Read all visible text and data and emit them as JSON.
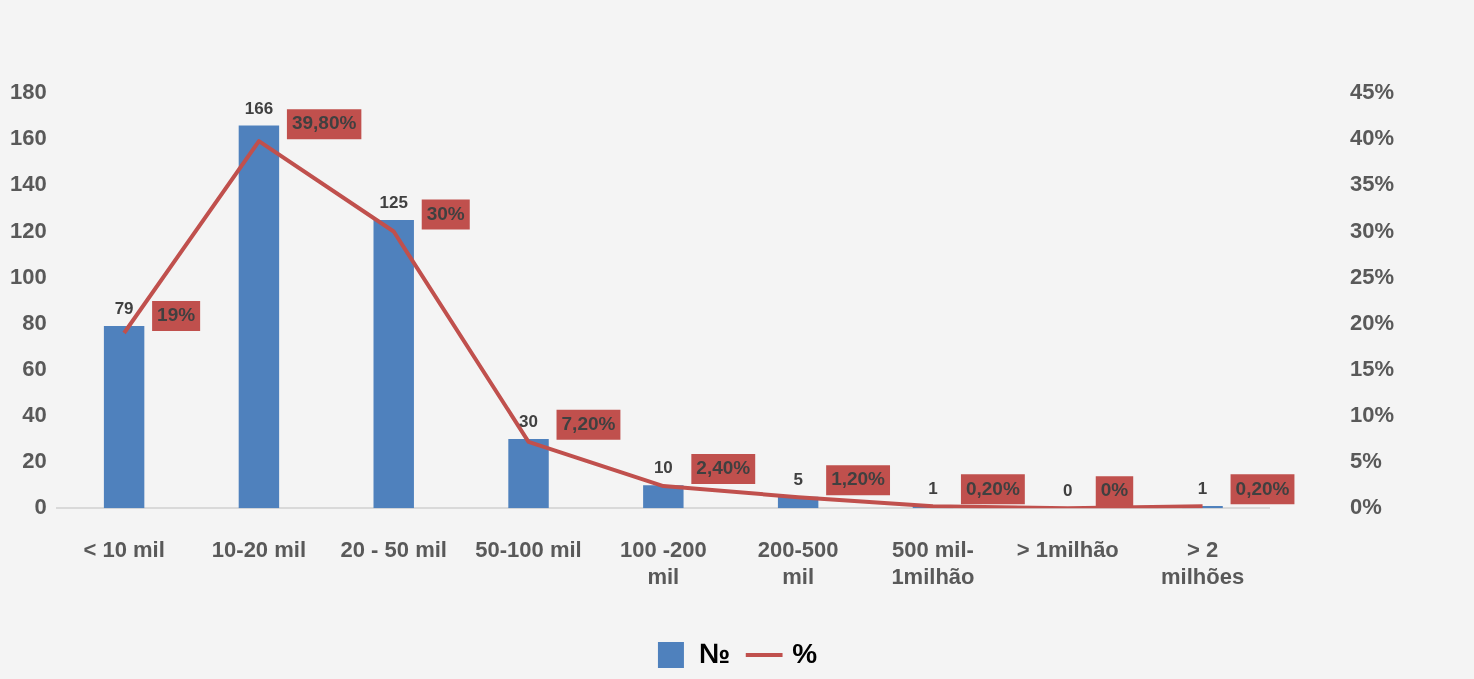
{
  "chart_data": {
    "type": "bar",
    "categories": [
      "< 10 mil",
      "10-20 mil",
      "20 - 50 mil",
      "50-100 mil",
      "100 -200 mil",
      "200-500 mil",
      "500 mil-1milhão",
      "> 1milhão",
      "> 2 milhões"
    ],
    "series": [
      {
        "name": "№",
        "color": "#4f81bd",
        "values": [
          79,
          166,
          125,
          30,
          10,
          5,
          1,
          0,
          1
        ],
        "value_labels": [
          "79",
          "166",
          "125",
          "30",
          "10",
          "5",
          "1",
          "0",
          "1"
        ]
      },
      {
        "name": "%",
        "type": "line",
        "axis": "y2",
        "color": "#c0504d",
        "values": [
          19,
          39.8,
          30,
          7.2,
          2.4,
          1.2,
          0.2,
          0,
          0.2
        ],
        "value_labels": [
          "19%",
          "39,80%",
          "30%",
          "7,20%",
          "2,40%",
          "1,20%",
          "0,20%",
          "0%",
          "0,20%"
        ]
      }
    ],
    "ylim": [
      0,
      180
    ],
    "yticks": [
      0,
      20,
      40,
      60,
      80,
      100,
      120,
      140,
      160,
      180
    ],
    "y2lim": [
      0,
      45
    ],
    "y2ticks": [
      {
        "value": 0,
        "label": "0%"
      },
      {
        "value": 5,
        "label": "5%"
      },
      {
        "value": 10,
        "label": "10%"
      },
      {
        "value": 15,
        "label": "15%"
      },
      {
        "value": 20,
        "label": "20%"
      },
      {
        "value": 25,
        "label": "25%"
      },
      {
        "value": 30,
        "label": "30%"
      },
      {
        "value": 35,
        "label": "35%"
      },
      {
        "value": 40,
        "label": "40%"
      },
      {
        "value": 45,
        "label": "45%"
      }
    ],
    "grid": false,
    "legend": "bottom",
    "marker": "none",
    "line_style": "solid"
  }
}
